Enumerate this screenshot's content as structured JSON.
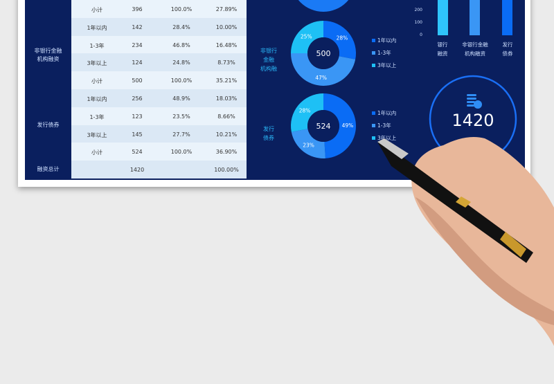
{
  "colors": {
    "bg": "#0a1f5e",
    "row_a": "#eaf3fb",
    "row_b": "#dbe8f5",
    "c1": "#0a6cf5",
    "c2": "#3a96f5",
    "c3": "#1ec0f5"
  },
  "table": {
    "groups": [
      {
        "label_lines": [
          "非银行金融",
          "机构融资"
        ]
      },
      {
        "label_lines": [
          "发行债券"
        ]
      },
      {
        "label_lines": [
          "融资总计"
        ]
      }
    ],
    "rows": [
      [
        "小计",
        "396",
        "100.0%",
        "27.89%"
      ],
      [
        "1年以内",
        "142",
        "28.4%",
        "10.00%"
      ],
      [
        "1-3年",
        "234",
        "46.8%",
        "16.48%"
      ],
      [
        "3年以上",
        "124",
        "24.8%",
        "8.73%"
      ],
      [
        "小计",
        "500",
        "100.0%",
        "35.21%"
      ],
      [
        "1年以内",
        "256",
        "48.9%",
        "18.03%"
      ],
      [
        "1-3年",
        "123",
        "23.5%",
        "8.66%"
      ],
      [
        "3年以上",
        "145",
        "27.7%",
        "10.21%"
      ],
      [
        "小计",
        "524",
        "100.0%",
        "36.90%"
      ],
      [
        "",
        "1420",
        "",
        "100.00%"
      ]
    ]
  },
  "chart_data": [
    {
      "type": "pie",
      "title_lines": [
        "非银行",
        "金融",
        "机构融"
      ],
      "center": "500",
      "labels": [
        "1年以内",
        "1-3年",
        "3年以上"
      ],
      "values": [
        28,
        47,
        25
      ],
      "value_labels": [
        "28%",
        "47%",
        "25%"
      ]
    },
    {
      "type": "pie",
      "title_lines": [
        "发行",
        "债券"
      ],
      "center": "524",
      "labels": [
        "1年以内",
        "1-3年",
        "3年以上"
      ],
      "values": [
        49,
        23,
        28
      ],
      "value_labels": [
        "49%",
        "23%",
        "28%"
      ]
    },
    {
      "type": "bar",
      "categories": [
        [
          "银行",
          "融资"
        ],
        [
          "非银行金融",
          "机构融资"
        ],
        [
          "发行",
          "债券"
        ]
      ],
      "values": [
        396,
        500,
        524
      ],
      "yticks": [
        "200",
        "100",
        "0"
      ]
    }
  ],
  "gauge": {
    "value": "1420",
    "icon": "coins-yuan-icon"
  }
}
